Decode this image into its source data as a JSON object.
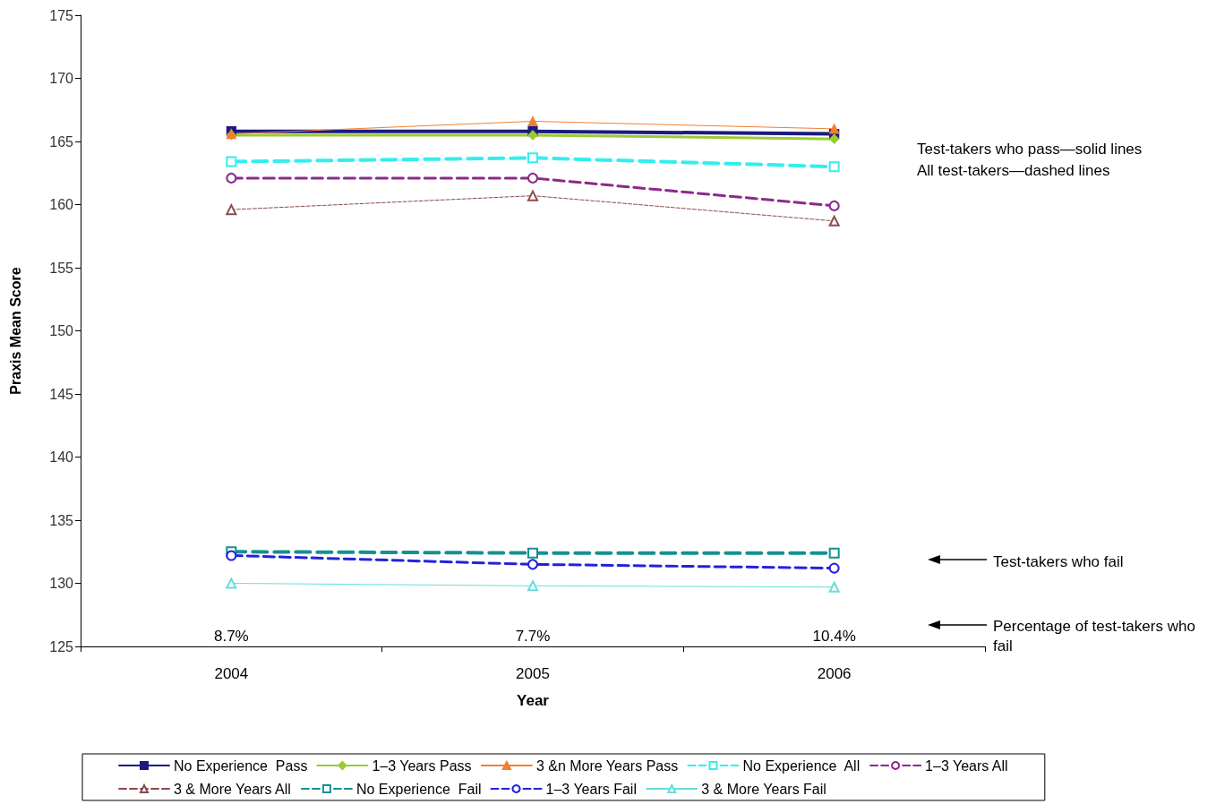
{
  "chart_data": {
    "type": "line",
    "xlabel": "Year",
    "ylabel": "Praxis Mean Score",
    "categories": [
      "2004",
      "2005",
      "2006"
    ],
    "ylim": [
      125,
      175
    ],
    "yticks": [
      125,
      130,
      135,
      140,
      145,
      150,
      155,
      160,
      165,
      170,
      175
    ],
    "grid": false,
    "legend": "bottom",
    "series": [
      {
        "name": "No Experience  Pass",
        "color": "#1a1a80",
        "marker": "square",
        "line_style": "solid",
        "values": [
          165.8,
          165.8,
          165.6
        ]
      },
      {
        "name": "1–3 Years Pass",
        "color": "#99cc33",
        "marker": "diamond",
        "line_style": "solid",
        "values": [
          165.5,
          165.5,
          165.2
        ]
      },
      {
        "name": "3 &n More Years Pass",
        "color": "#f28030",
        "marker": "triangle",
        "line_style": "solid",
        "values": [
          165.6,
          166.6,
          166.0
        ]
      },
      {
        "name": "No Experience  All",
        "color": "#33eeee",
        "marker": "square",
        "line_style": "dashed",
        "values": [
          163.4,
          163.7,
          163.0
        ]
      },
      {
        "name": "1–3 Years All",
        "color": "#8b2a8b",
        "marker": "circle",
        "line_style": "dashed",
        "values": [
          162.1,
          162.1,
          159.9
        ]
      },
      {
        "name": "3 & More Years All",
        "color": "#8b4a4a",
        "marker": "triangle",
        "line_style": "dashed",
        "values": [
          159.6,
          160.7,
          158.7
        ]
      },
      {
        "name": "No Experience  Fail",
        "color": "#169090",
        "marker": "square",
        "line_style": "dashed",
        "values": [
          132.5,
          132.4,
          132.4
        ]
      },
      {
        "name": "1–3 Years Fail",
        "color": "#2222dd",
        "marker": "circle",
        "line_style": "dashed",
        "values": [
          132.2,
          131.5,
          131.2
        ]
      },
      {
        "name": "3 & More Years Fail",
        "color": "#66dddd",
        "marker": "triangle",
        "line_style": "solid",
        "values": [
          130.0,
          129.8,
          129.7
        ]
      }
    ],
    "annotations": [
      "8.7%",
      "7.7%",
      "10.4%",
      "Test-takers who pass—solid lines",
      "All test-takers—dashed lines",
      "Test-takers who fail",
      "Percentage of test-takers who fail"
    ]
  }
}
